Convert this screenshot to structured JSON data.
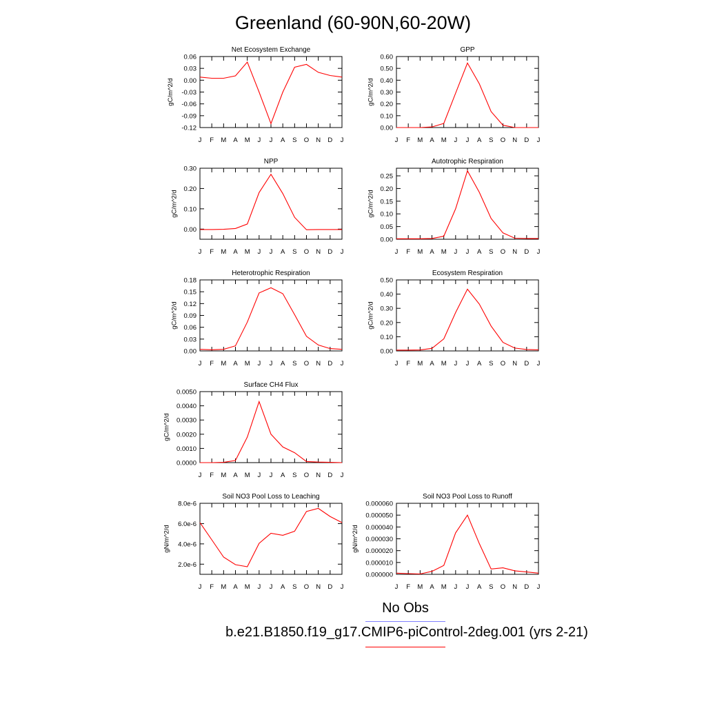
{
  "title": "Greenland (60-90N,60-20W)",
  "legend": {
    "obs_label": "No Obs",
    "model_label": "b.e21.B1850.f19_g17.CMIP6-piControl-2deg.001 (yrs 2-21)",
    "obs_color": "#8080ff",
    "model_color": "#ff0000"
  },
  "chart_data": [
    {
      "type": "line",
      "title": "Net Ecosystem Exchange",
      "ylabel": "gC/m^2/d",
      "categories": [
        "J",
        "F",
        "M",
        "A",
        "M",
        "J",
        "J",
        "A",
        "S",
        "O",
        "N",
        "D",
        "J"
      ],
      "ylim": [
        -0.12,
        0.06
      ],
      "yticks": [
        "0.06",
        "0.03",
        "0.00",
        "-0.03",
        "-0.06",
        "-0.09",
        "-0.12"
      ],
      "series": [
        {
          "color": "#ff0000",
          "values": [
            0.008,
            0.005,
            0.005,
            0.011,
            0.046,
            -0.03,
            -0.11,
            -0.03,
            0.033,
            0.04,
            0.02,
            0.012,
            0.008
          ]
        }
      ]
    },
    {
      "type": "line",
      "title": "GPP",
      "ylabel": "gC/m^2/d",
      "categories": [
        "J",
        "F",
        "M",
        "A",
        "M",
        "J",
        "J",
        "A",
        "S",
        "O",
        "N",
        "D",
        "J"
      ],
      "ylim": [
        0,
        0.6
      ],
      "yticks": [
        "0.60",
        "0.50",
        "0.40",
        "0.30",
        "0.20",
        "0.10",
        "0.00"
      ],
      "series": [
        {
          "color": "#ff0000",
          "values": [
            0,
            0,
            0,
            0.005,
            0.035,
            0.29,
            0.545,
            0.37,
            0.135,
            0.02,
            0,
            0,
            0
          ]
        }
      ]
    },
    {
      "type": "line",
      "title": "NPP",
      "ylabel": "gC/m^2/d",
      "categories": [
        "J",
        "F",
        "M",
        "A",
        "M",
        "J",
        "J",
        "A",
        "S",
        "O",
        "N",
        "D",
        "J"
      ],
      "ylim": [
        -0.05,
        0.3
      ],
      "yticks": [
        "0.30",
        "0.20",
        "0.10",
        "0.00"
      ],
      "series": [
        {
          "color": "#ff0000",
          "values": [
            -0.002,
            -0.002,
            -0.001,
            0.003,
            0.025,
            0.18,
            0.27,
            0.175,
            0.058,
            -0.003,
            -0.002,
            -0.002,
            -0.002
          ]
        }
      ]
    },
    {
      "type": "line",
      "title": "Autotrophic Respiration",
      "ylabel": "gC/m^2/d",
      "categories": [
        "J",
        "F",
        "M",
        "A",
        "M",
        "J",
        "J",
        "A",
        "S",
        "O",
        "N",
        "D",
        "J"
      ],
      "ylim": [
        0,
        0.28
      ],
      "yticks": [
        "0.25",
        "0.20",
        "0.15",
        "0.10",
        "0.05",
        "0.00"
      ],
      "series": [
        {
          "color": "#ff0000",
          "values": [
            0.002,
            0.002,
            0.002,
            0.003,
            0.012,
            0.12,
            0.27,
            0.185,
            0.082,
            0.025,
            0.004,
            0.003,
            0.003
          ]
        }
      ]
    },
    {
      "type": "line",
      "title": "Heterotrophic Respiration",
      "ylabel": "gC/m^2/d",
      "categories": [
        "J",
        "F",
        "M",
        "A",
        "M",
        "J",
        "J",
        "A",
        "S",
        "O",
        "N",
        "D",
        "J"
      ],
      "ylim": [
        0,
        0.18
      ],
      "yticks": [
        "0.18",
        "0.15",
        "0.12",
        "0.09",
        "0.06",
        "0.03",
        "0.00"
      ],
      "series": [
        {
          "color": "#ff0000",
          "values": [
            0.004,
            0.003,
            0.004,
            0.013,
            0.073,
            0.147,
            0.16,
            0.145,
            0.092,
            0.037,
            0.015,
            0.006,
            0.004
          ]
        }
      ]
    },
    {
      "type": "line",
      "title": "Ecosystem Respiration",
      "ylabel": "gC/m^2/d",
      "categories": [
        "J",
        "F",
        "M",
        "A",
        "M",
        "J",
        "J",
        "A",
        "S",
        "O",
        "N",
        "D",
        "J"
      ],
      "ylim": [
        0,
        0.5
      ],
      "yticks": [
        "0.50",
        "0.40",
        "0.30",
        "0.20",
        "0.10",
        "0.00"
      ],
      "series": [
        {
          "color": "#ff0000",
          "values": [
            0.006,
            0.006,
            0.007,
            0.018,
            0.085,
            0.27,
            0.435,
            0.33,
            0.175,
            0.06,
            0.02,
            0.01,
            0.008
          ]
        }
      ]
    },
    {
      "type": "line",
      "title": "Surface CH4 Flux",
      "ylabel": "gC/m^2/d",
      "categories": [
        "J",
        "F",
        "M",
        "A",
        "M",
        "J",
        "J",
        "A",
        "S",
        "O",
        "N",
        "D",
        "J"
      ],
      "ylim": [
        0,
        0.005
      ],
      "yticks": [
        "0.0050",
        "0.0040",
        "0.0030",
        "0.0020",
        "0.0010",
        "0.0000"
      ],
      "series": [
        {
          "color": "#ff0000",
          "values": [
            0,
            0,
            2e-05,
            0.00015,
            0.0018,
            0.0043,
            0.002,
            0.0011,
            0.0007,
            8e-05,
            4e-05,
            2e-05,
            0
          ]
        }
      ]
    },
    {
      "type": "line",
      "title": "Soil NO3 Pool Loss to Leaching",
      "ylabel": "gN/m^2/d",
      "categories": [
        "J",
        "F",
        "M",
        "A",
        "M",
        "J",
        "J",
        "A",
        "S",
        "O",
        "N",
        "D",
        "J"
      ],
      "ylim": [
        1e-06,
        8e-06
      ],
      "yticks": [
        "8.0e-6",
        "6.0e-6",
        "4.0e-6",
        "2.0e-6"
      ],
      "series": [
        {
          "color": "#ff0000",
          "values": [
            6.1e-06,
            4.4e-06,
            2.7e-06,
            1.95e-06,
            1.75e-06,
            4.05e-06,
            5.05e-06,
            4.85e-06,
            5.25e-06,
            7.2e-06,
            7.5e-06,
            6.7e-06,
            6.1e-06
          ]
        }
      ]
    },
    {
      "type": "line",
      "title": "Soil NO3 Pool Loss to Runoff",
      "ylabel": "gN/m^2/d",
      "categories": [
        "J",
        "F",
        "M",
        "A",
        "M",
        "J",
        "J",
        "A",
        "S",
        "O",
        "N",
        "D",
        "J"
      ],
      "ylim": [
        0,
        6e-05
      ],
      "yticks": [
        "0.000060",
        "0.000050",
        "0.000040",
        "0.000030",
        "0.000020",
        "0.000010",
        "0.000000"
      ],
      "series": [
        {
          "color": "#ff0000",
          "values": [
            1e-06,
            6e-07,
            3e-07,
            2.5e-06,
            7.5e-06,
            3.5e-05,
            5e-05,
            2.6e-05,
            4.5e-06,
            5.5e-06,
            3e-06,
            2e-06,
            1e-06
          ]
        }
      ]
    }
  ]
}
